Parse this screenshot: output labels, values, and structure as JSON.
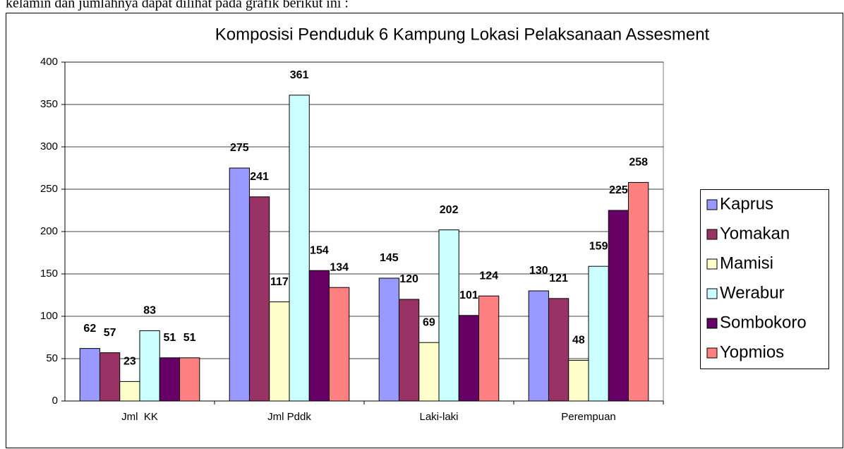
{
  "document_text": "kelamin dan jumlahnya dapat dilihat pada grafik berikut ini :",
  "chart_data": {
    "type": "bar",
    "title": "Komposisi Penduduk 6 Kampung Lokasi Pelaksanaan Assesment",
    "categories": [
      "Jml  KK",
      "Jml Pddk",
      "Laki-laki",
      "Perempuan"
    ],
    "series": [
      {
        "name": "Kaprus",
        "color": "#9999ff",
        "values": [
          62,
          275,
          145,
          130
        ]
      },
      {
        "name": "Yomakan",
        "color": "#993366",
        "values": [
          57,
          241,
          120,
          121
        ]
      },
      {
        "name": "Mamisi",
        "color": "#ffffcc",
        "values": [
          23,
          117,
          69,
          48
        ]
      },
      {
        "name": "Werabur",
        "color": "#ccffff",
        "values": [
          83,
          361,
          202,
          159
        ]
      },
      {
        "name": "Sombokoro",
        "color": "#660066",
        "values": [
          51,
          154,
          101,
          225
        ]
      },
      {
        "name": "Yopmios",
        "color": "#ff8080",
        "values": [
          51,
          134,
          124,
          258
        ]
      }
    ],
    "ylim": [
      0,
      400
    ],
    "yticks": [
      0,
      50,
      100,
      150,
      200,
      250,
      300,
      350,
      400
    ],
    "grid": true,
    "legend": "right"
  }
}
